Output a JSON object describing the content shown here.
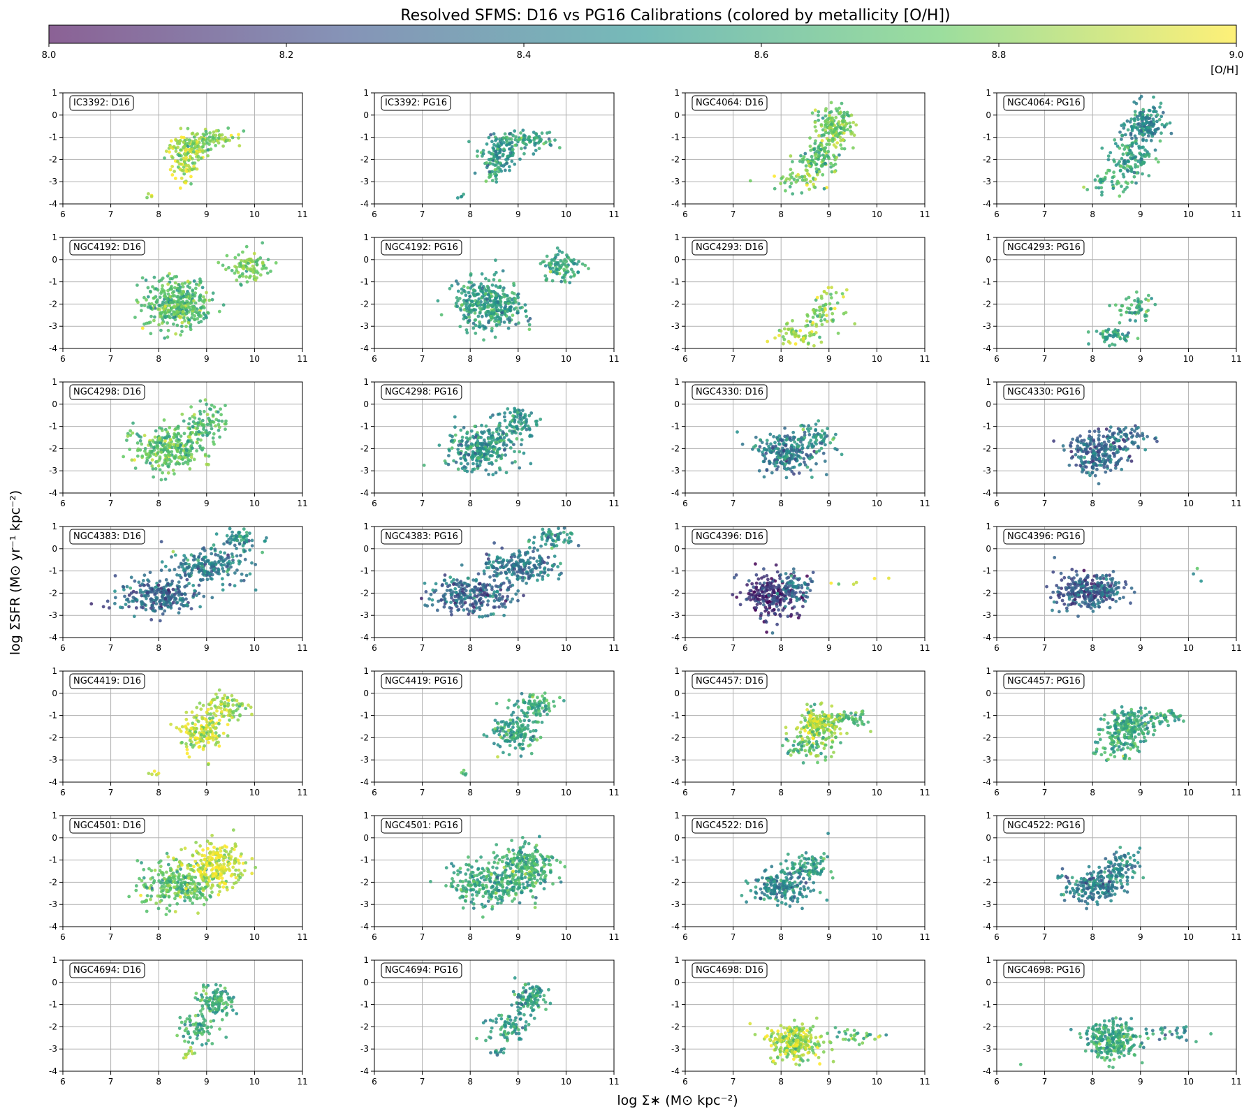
{
  "figure": {
    "title": "Resolved SFMS: D16 vs PG16 Calibrations (colored by metallicity [O/H])",
    "xlabel": "log Σ∗ (M⊙ kpc⁻²)",
    "ylabel": "log ΣSFR (M⊙ yr⁻¹ kpc⁻²)"
  },
  "colorbar": {
    "label": "[O/H]",
    "range": [
      8.0,
      9.0
    ],
    "ticks": [
      "8.0",
      "8.2",
      "8.4",
      "8.6",
      "8.8",
      "9.0"
    ],
    "colormap": "viridis",
    "colors": [
      "#440154",
      "#3b528b",
      "#21918c",
      "#5ec962",
      "#fde725"
    ]
  },
  "chart_data": {
    "type": "scatter",
    "grid": true,
    "layout": "7 rows x 4 columns",
    "xlim": [
      6,
      11
    ],
    "ylim": [
      -4,
      1
    ],
    "xticks": [
      "6",
      "7",
      "8",
      "9",
      "10",
      "11"
    ],
    "yticks": [
      "1",
      "0",
      "-1",
      "-2",
      "-3",
      "-4"
    ],
    "panels": [
      {
        "label": "IC3392: D16",
        "clusters": [
          {
            "x": 8.6,
            "y": -1.6,
            "sx": 0.22,
            "sy": 0.4,
            "n": 120,
            "oh": 8.85
          },
          {
            "x": 9.2,
            "y": -1.1,
            "sx": 0.28,
            "sy": 0.22,
            "n": 70,
            "oh": 8.8
          },
          {
            "x": 8.5,
            "y": -2.5,
            "sx": 0.12,
            "sy": 0.3,
            "n": 30,
            "oh": 8.88
          },
          {
            "x": 7.8,
            "y": -3.6,
            "sx": 0.05,
            "sy": 0.08,
            "n": 4,
            "oh": 8.9
          }
        ]
      },
      {
        "label": "IC3392: PG16",
        "clusters": [
          {
            "x": 8.6,
            "y": -1.6,
            "sx": 0.22,
            "sy": 0.4,
            "n": 120,
            "oh": 8.52
          },
          {
            "x": 9.2,
            "y": -1.1,
            "sx": 0.28,
            "sy": 0.22,
            "n": 70,
            "oh": 8.55
          },
          {
            "x": 8.5,
            "y": -2.5,
            "sx": 0.12,
            "sy": 0.3,
            "n": 30,
            "oh": 8.62
          },
          {
            "x": 7.8,
            "y": -3.6,
            "sx": 0.05,
            "sy": 0.08,
            "n": 4,
            "oh": 8.55
          }
        ]
      },
      {
        "label": "NGC4064: D16",
        "clusters": [
          {
            "x": 9.1,
            "y": -0.5,
            "sx": 0.2,
            "sy": 0.45,
            "n": 160,
            "oh": 8.75
          },
          {
            "x": 8.8,
            "y": -2.0,
            "sx": 0.2,
            "sy": 0.4,
            "n": 110,
            "oh": 8.7
          },
          {
            "x": 8.3,
            "y": -3.0,
            "sx": 0.25,
            "sy": 0.25,
            "n": 40,
            "oh": 8.82
          }
        ]
      },
      {
        "label": "NGC4064: PG16",
        "clusters": [
          {
            "x": 9.1,
            "y": -0.5,
            "sx": 0.2,
            "sy": 0.45,
            "n": 160,
            "oh": 8.45
          },
          {
            "x": 8.8,
            "y": -2.0,
            "sx": 0.2,
            "sy": 0.4,
            "n": 110,
            "oh": 8.55
          },
          {
            "x": 8.3,
            "y": -3.0,
            "sx": 0.25,
            "sy": 0.25,
            "n": 40,
            "oh": 8.6
          }
        ]
      },
      {
        "label": "NGC4192: D16",
        "clusters": [
          {
            "x": 8.4,
            "y": -2.0,
            "sx": 0.35,
            "sy": 0.55,
            "n": 360,
            "oh": 8.7
          },
          {
            "x": 9.9,
            "y": -0.4,
            "sx": 0.22,
            "sy": 0.35,
            "n": 90,
            "oh": 8.75
          }
        ]
      },
      {
        "label": "NGC4192: PG16",
        "clusters": [
          {
            "x": 8.4,
            "y": -2.0,
            "sx": 0.35,
            "sy": 0.55,
            "n": 360,
            "oh": 8.55
          },
          {
            "x": 9.9,
            "y": -0.4,
            "sx": 0.22,
            "sy": 0.35,
            "n": 90,
            "oh": 8.58
          }
        ]
      },
      {
        "label": "NGC4293: D16",
        "clusters": [
          {
            "x": 8.4,
            "y": -3.4,
            "sx": 0.25,
            "sy": 0.25,
            "n": 60,
            "oh": 8.85
          },
          {
            "x": 8.9,
            "y": -2.2,
            "sx": 0.2,
            "sy": 0.4,
            "n": 60,
            "oh": 8.8
          }
        ]
      },
      {
        "label": "NGC4293: PG16",
        "clusters": [
          {
            "x": 8.4,
            "y": -3.4,
            "sx": 0.2,
            "sy": 0.2,
            "n": 55,
            "oh": 8.55
          },
          {
            "x": 8.9,
            "y": -2.2,
            "sx": 0.18,
            "sy": 0.35,
            "n": 50,
            "oh": 8.6
          }
        ]
      },
      {
        "label": "NGC4298: D16",
        "clusters": [
          {
            "x": 8.2,
            "y": -2.0,
            "sx": 0.35,
            "sy": 0.5,
            "n": 280,
            "oh": 8.72
          },
          {
            "x": 9.0,
            "y": -0.8,
            "sx": 0.22,
            "sy": 0.4,
            "n": 90,
            "oh": 8.68
          }
        ]
      },
      {
        "label": "NGC4298: PG16",
        "clusters": [
          {
            "x": 8.2,
            "y": -2.0,
            "sx": 0.35,
            "sy": 0.5,
            "n": 280,
            "oh": 8.5
          },
          {
            "x": 9.0,
            "y": -0.8,
            "sx": 0.22,
            "sy": 0.4,
            "n": 90,
            "oh": 8.52
          }
        ]
      },
      {
        "label": "NGC4330: D16",
        "clusters": [
          {
            "x": 8.1,
            "y": -2.2,
            "sx": 0.3,
            "sy": 0.45,
            "n": 230,
            "oh": 8.4
          },
          {
            "x": 8.7,
            "y": -1.5,
            "sx": 0.25,
            "sy": 0.3,
            "n": 60,
            "oh": 8.5
          }
        ]
      },
      {
        "label": "NGC4330: PG16",
        "clusters": [
          {
            "x": 8.1,
            "y": -2.2,
            "sx": 0.3,
            "sy": 0.45,
            "n": 230,
            "oh": 8.33
          },
          {
            "x": 8.7,
            "y": -1.5,
            "sx": 0.25,
            "sy": 0.3,
            "n": 60,
            "oh": 8.38
          }
        ]
      },
      {
        "label": "NGC4383: D16",
        "clusters": [
          {
            "x": 8.0,
            "y": -2.1,
            "sx": 0.45,
            "sy": 0.4,
            "n": 250,
            "oh": 8.33
          },
          {
            "x": 9.0,
            "y": -0.8,
            "sx": 0.4,
            "sy": 0.35,
            "n": 200,
            "oh": 8.42
          },
          {
            "x": 9.7,
            "y": 0.4,
            "sx": 0.2,
            "sy": 0.25,
            "n": 60,
            "oh": 8.5
          }
        ]
      },
      {
        "label": "NGC4383: PG16",
        "clusters": [
          {
            "x": 8.0,
            "y": -2.1,
            "sx": 0.45,
            "sy": 0.4,
            "n": 250,
            "oh": 8.33
          },
          {
            "x": 9.0,
            "y": -0.8,
            "sx": 0.4,
            "sy": 0.35,
            "n": 200,
            "oh": 8.4
          },
          {
            "x": 9.7,
            "y": 0.4,
            "sx": 0.2,
            "sy": 0.25,
            "n": 60,
            "oh": 8.48
          }
        ]
      },
      {
        "label": "NGC4396: D16",
        "clusters": [
          {
            "x": 7.8,
            "y": -2.1,
            "sx": 0.3,
            "sy": 0.5,
            "n": 240,
            "oh": 8.15
          },
          {
            "x": 8.3,
            "y": -1.7,
            "sx": 0.2,
            "sy": 0.3,
            "n": 70,
            "oh": 8.35
          },
          {
            "x": 9.8,
            "y": -1.4,
            "sx": 0.5,
            "sy": 0.2,
            "n": 6,
            "oh": 8.9
          }
        ]
      },
      {
        "label": "NGC4396: PG16",
        "clusters": [
          {
            "x": 7.8,
            "y": -2.0,
            "sx": 0.3,
            "sy": 0.45,
            "n": 240,
            "oh": 8.28
          },
          {
            "x": 8.3,
            "y": -1.7,
            "sx": 0.2,
            "sy": 0.3,
            "n": 70,
            "oh": 8.35
          },
          {
            "x": 10.2,
            "y": -1.1,
            "sx": 0.3,
            "sy": 0.2,
            "n": 3,
            "oh": 8.55
          }
        ]
      },
      {
        "label": "NGC4419: D16",
        "clusters": [
          {
            "x": 8.9,
            "y": -1.8,
            "sx": 0.22,
            "sy": 0.45,
            "n": 150,
            "oh": 8.9
          },
          {
            "x": 9.4,
            "y": -0.6,
            "sx": 0.2,
            "sy": 0.3,
            "n": 80,
            "oh": 8.85
          },
          {
            "x": 7.9,
            "y": -3.6,
            "sx": 0.1,
            "sy": 0.1,
            "n": 5,
            "oh": 8.9
          }
        ]
      },
      {
        "label": "NGC4419: PG16",
        "clusters": [
          {
            "x": 8.9,
            "y": -1.8,
            "sx": 0.22,
            "sy": 0.45,
            "n": 150,
            "oh": 8.58
          },
          {
            "x": 9.4,
            "y": -0.6,
            "sx": 0.2,
            "sy": 0.3,
            "n": 80,
            "oh": 8.6
          },
          {
            "x": 7.9,
            "y": -3.6,
            "sx": 0.1,
            "sy": 0.1,
            "n": 5,
            "oh": 8.6
          }
        ]
      },
      {
        "label": "NGC4457: D16",
        "clusters": [
          {
            "x": 8.8,
            "y": -1.4,
            "sx": 0.25,
            "sy": 0.35,
            "n": 180,
            "oh": 8.85
          },
          {
            "x": 8.6,
            "y": -2.4,
            "sx": 0.25,
            "sy": 0.35,
            "n": 80,
            "oh": 8.7
          },
          {
            "x": 9.5,
            "y": -1.1,
            "sx": 0.2,
            "sy": 0.15,
            "n": 40,
            "oh": 8.7
          }
        ]
      },
      {
        "label": "NGC4457: PG16",
        "clusters": [
          {
            "x": 8.8,
            "y": -1.4,
            "sx": 0.25,
            "sy": 0.35,
            "n": 180,
            "oh": 8.6
          },
          {
            "x": 8.6,
            "y": -2.4,
            "sx": 0.25,
            "sy": 0.35,
            "n": 80,
            "oh": 8.62
          },
          {
            "x": 9.5,
            "y": -1.1,
            "sx": 0.2,
            "sy": 0.15,
            "n": 40,
            "oh": 8.58
          }
        ]
      },
      {
        "label": "NGC4501: D16",
        "clusters": [
          {
            "x": 8.4,
            "y": -2.1,
            "sx": 0.4,
            "sy": 0.5,
            "n": 260,
            "oh": 8.72
          },
          {
            "x": 9.2,
            "y": -1.3,
            "sx": 0.3,
            "sy": 0.5,
            "n": 220,
            "oh": 8.92
          }
        ]
      },
      {
        "label": "NGC4501: PG16",
        "clusters": [
          {
            "x": 8.4,
            "y": -2.1,
            "sx": 0.4,
            "sy": 0.5,
            "n": 260,
            "oh": 8.6
          },
          {
            "x": 9.2,
            "y": -1.3,
            "sx": 0.3,
            "sy": 0.5,
            "n": 220,
            "oh": 8.62
          }
        ]
      },
      {
        "label": "NGC4522: D16",
        "clusters": [
          {
            "x": 8.0,
            "y": -2.2,
            "sx": 0.3,
            "sy": 0.35,
            "n": 190,
            "oh": 8.45
          },
          {
            "x": 8.6,
            "y": -1.3,
            "sx": 0.2,
            "sy": 0.35,
            "n": 90,
            "oh": 8.55
          }
        ]
      },
      {
        "label": "NGC4522: PG16",
        "clusters": [
          {
            "x": 8.0,
            "y": -2.2,
            "sx": 0.3,
            "sy": 0.35,
            "n": 190,
            "oh": 8.4
          },
          {
            "x": 8.6,
            "y": -1.3,
            "sx": 0.2,
            "sy": 0.35,
            "n": 90,
            "oh": 8.45
          }
        ]
      },
      {
        "label": "NGC4694: D16",
        "clusters": [
          {
            "x": 9.2,
            "y": -0.8,
            "sx": 0.18,
            "sy": 0.35,
            "n": 110,
            "oh": 8.62
          },
          {
            "x": 8.8,
            "y": -2.0,
            "sx": 0.2,
            "sy": 0.35,
            "n": 70,
            "oh": 8.6
          },
          {
            "x": 8.6,
            "y": -3.1,
            "sx": 0.1,
            "sy": 0.15,
            "n": 10,
            "oh": 8.85
          }
        ]
      },
      {
        "label": "NGC4694: PG16",
        "clusters": [
          {
            "x": 9.2,
            "y": -0.8,
            "sx": 0.18,
            "sy": 0.35,
            "n": 110,
            "oh": 8.55
          },
          {
            "x": 8.8,
            "y": -2.0,
            "sx": 0.2,
            "sy": 0.35,
            "n": 70,
            "oh": 8.55
          },
          {
            "x": 8.6,
            "y": -3.1,
            "sx": 0.1,
            "sy": 0.15,
            "n": 10,
            "oh": 8.5
          }
        ]
      },
      {
        "label": "NGC4698: D16",
        "clusters": [
          {
            "x": 8.3,
            "y": -2.7,
            "sx": 0.28,
            "sy": 0.4,
            "n": 260,
            "oh": 8.85
          },
          {
            "x": 9.5,
            "y": -2.4,
            "sx": 0.35,
            "sy": 0.2,
            "n": 30,
            "oh": 8.7
          }
        ]
      },
      {
        "label": "NGC4698: PG16",
        "clusters": [
          {
            "x": 8.4,
            "y": -2.6,
            "sx": 0.28,
            "sy": 0.4,
            "n": 260,
            "oh": 8.6
          },
          {
            "x": 9.6,
            "y": -2.3,
            "sx": 0.35,
            "sy": 0.2,
            "n": 30,
            "oh": 8.5
          },
          {
            "x": 6.5,
            "y": -3.6,
            "sx": 0.05,
            "sy": 0.05,
            "n": 1,
            "oh": 8.5
          }
        ]
      }
    ]
  }
}
